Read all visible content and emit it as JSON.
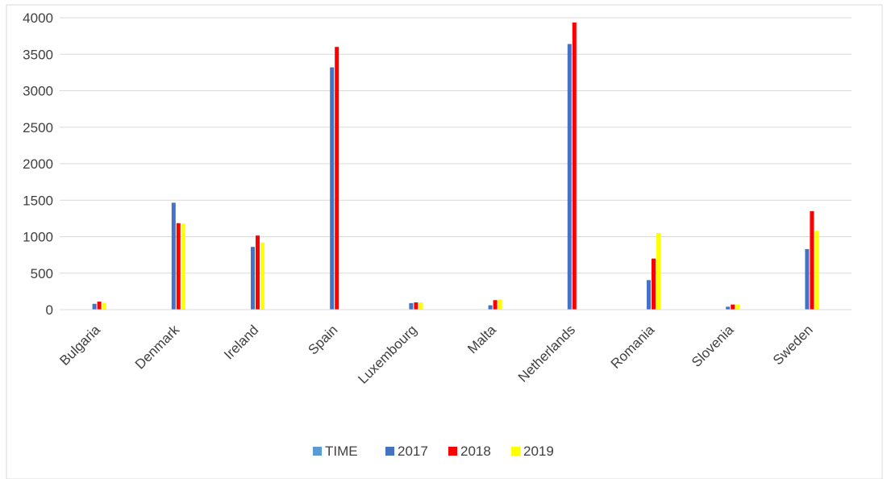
{
  "chart_data": {
    "type": "bar",
    "title": "",
    "xlabel": "",
    "ylabel": "",
    "ylim": [
      0,
      4000
    ],
    "yticks": [
      0,
      500,
      1000,
      1500,
      2000,
      2500,
      3000,
      3500,
      4000
    ],
    "grid": true,
    "legend_position": "bottom",
    "categories": [
      "Bulgaria",
      "Denmark",
      "Ireland",
      "Spain",
      "Luxembourg",
      "Malta",
      "Netherlands",
      "Romania",
      "Slovenia",
      "Sweden"
    ],
    "series": [
      {
        "name": "TIME",
        "color": "#5b9bd5",
        "values": [
          null,
          null,
          null,
          null,
          null,
          null,
          null,
          null,
          null,
          null
        ]
      },
      {
        "name": "2017",
        "color": "#4472c4",
        "values": [
          80,
          1465,
          860,
          3320,
          90,
          60,
          3640,
          405,
          40,
          830
        ]
      },
      {
        "name": "2018",
        "color": "#ff0000",
        "values": [
          110,
          1185,
          1015,
          3600,
          100,
          130,
          3935,
          700,
          70,
          1350
        ]
      },
      {
        "name": "2019",
        "color": "#ffff00",
        "values": [
          95,
          1180,
          920,
          null,
          100,
          140,
          null,
          1050,
          70,
          1080
        ]
      }
    ]
  }
}
